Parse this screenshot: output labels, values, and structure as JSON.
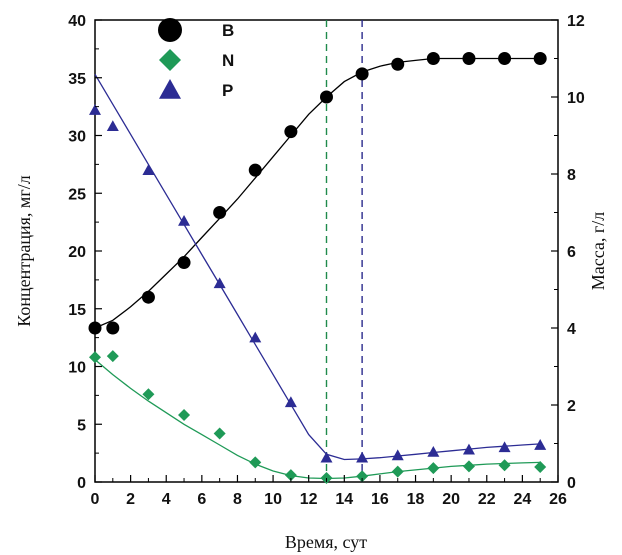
{
  "chart_data": {
    "type": "scatter",
    "xlabel": "Время, сут",
    "ylabel_left": "Концентрация, мг/л",
    "ylabel_right": "Масса, г/л",
    "xlim": [
      0,
      26
    ],
    "ylim_left": [
      0,
      40
    ],
    "ylim_right": [
      0,
      12
    ],
    "x_ticks": [
      0,
      2,
      4,
      6,
      8,
      10,
      12,
      14,
      16,
      18,
      20,
      22,
      24,
      26
    ],
    "y_left_ticks": [
      0,
      5,
      10,
      15,
      20,
      25,
      30,
      35,
      40
    ],
    "y_right_ticks": [
      0,
      2,
      4,
      6,
      8,
      10,
      12
    ],
    "legend_position": "top-left",
    "grid": false,
    "vertical_lines": [
      {
        "x": 13,
        "color": "#1f8a4c",
        "style": "dashed"
      },
      {
        "x": 15,
        "color": "#2b2b8c",
        "style": "dashed"
      }
    ],
    "series": [
      {
        "name": "B",
        "axis": "right",
        "marker": "circle",
        "color": "#000000",
        "x": [
          0,
          1,
          3,
          5,
          7,
          9,
          11,
          13,
          15,
          17,
          19,
          21,
          23,
          25
        ],
        "y": [
          4.0,
          4.0,
          4.8,
          5.7,
          7.0,
          8.1,
          9.1,
          10.0,
          10.6,
          10.85,
          11.0,
          11.0,
          11.0,
          11.0
        ],
        "fit_x": [
          0,
          1,
          2,
          3,
          4,
          5,
          6,
          7,
          8,
          9,
          10,
          11,
          12,
          13,
          14,
          15,
          16,
          17,
          18,
          19,
          20,
          21,
          22,
          23,
          24,
          25
        ],
        "fit_y": [
          4.0,
          4.2,
          4.55,
          4.95,
          5.4,
          5.85,
          6.35,
          6.85,
          7.35,
          7.9,
          8.45,
          9.0,
          9.55,
          10.0,
          10.4,
          10.65,
          10.8,
          10.9,
          10.95,
          11.0,
          11.0,
          11.0,
          11.0,
          11.0,
          11.0,
          11.0
        ]
      },
      {
        "name": "N",
        "axis": "left",
        "marker": "diamond",
        "color": "#1f9a57",
        "x": [
          0,
          1,
          3,
          5,
          7,
          9,
          11,
          13,
          15,
          17,
          19,
          21,
          23,
          25
        ],
        "y": [
          10.8,
          10.9,
          7.6,
          5.8,
          4.2,
          1.7,
          0.6,
          0.35,
          0.5,
          0.9,
          1.2,
          1.35,
          1.45,
          1.3
        ],
        "fit_x": [
          0,
          1,
          2,
          3,
          4,
          5,
          6,
          7,
          8,
          9,
          10,
          11,
          12,
          13,
          14,
          15,
          16,
          17,
          18,
          19,
          20,
          21,
          22,
          23,
          24,
          25
        ],
        "fit_y": [
          10.6,
          9.3,
          8.1,
          7.0,
          6.0,
          5.0,
          4.1,
          3.2,
          2.3,
          1.55,
          0.95,
          0.55,
          0.35,
          0.3,
          0.35,
          0.5,
          0.7,
          0.9,
          1.05,
          1.2,
          1.35,
          1.45,
          1.55,
          1.6,
          1.65,
          1.7
        ]
      },
      {
        "name": "P",
        "axis": "left",
        "marker": "triangle",
        "color": "#2c2c94",
        "x": [
          0,
          1,
          3,
          5,
          7,
          9,
          11,
          13,
          15,
          17,
          19,
          21,
          23,
          25
        ],
        "y": [
          32.2,
          30.8,
          27.0,
          22.6,
          17.2,
          12.5,
          6.9,
          2.1,
          2.1,
          2.3,
          2.6,
          2.8,
          3.0,
          3.2
        ],
        "fit_x": [
          0,
          1,
          2,
          3,
          4,
          5,
          6,
          7,
          8,
          9,
          10,
          11,
          12,
          13,
          14,
          15,
          16,
          17,
          18,
          19,
          20,
          21,
          22,
          23,
          24,
          25
        ],
        "fit_y": [
          35.3,
          32.7,
          30.1,
          27.5,
          24.9,
          22.3,
          19.7,
          17.1,
          14.5,
          11.9,
          9.3,
          6.7,
          4.1,
          2.4,
          1.95,
          2.0,
          2.1,
          2.25,
          2.4,
          2.55,
          2.7,
          2.85,
          3.0,
          3.1,
          3.2,
          3.3
        ]
      }
    ]
  }
}
